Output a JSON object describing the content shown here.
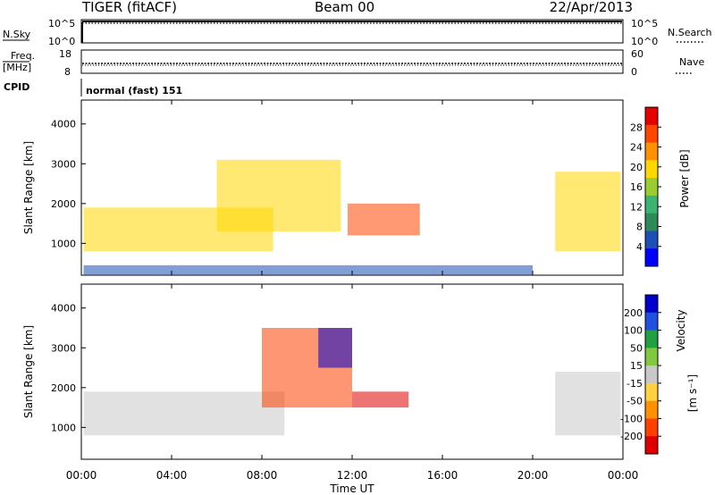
{
  "header": {
    "radar": "TIGER (fitACF)",
    "beam": "Beam 00",
    "date": "22/Apr/2013"
  },
  "chart_data": [
    {
      "type": "line",
      "title": "",
      "left_label": "N.Sky",
      "right_label": "N.Search",
      "left_ticks": [
        "10^5",
        "10^0"
      ],
      "right_ticks": [
        "10^5",
        "10^0"
      ],
      "xlim": [
        "00:00",
        "24:00"
      ],
      "series": [
        {
          "values": [
            5.0,
            5.0
          ]
        },
        {
          "values": [
            4.8,
            4.8
          ]
        }
      ]
    },
    {
      "type": "line",
      "left_label_top": "Freq.",
      "left_label_bottom": "[MHz]",
      "right_label": "Nave",
      "left_ticks": [
        "18",
        "8"
      ],
      "right_ticks": [
        "60",
        "0"
      ],
      "cpid_label": "CPID",
      "cpid_text": "normal (fast) 151",
      "series": [
        {
          "values": [
            10.5,
            10.5
          ]
        }
      ]
    },
    {
      "type": "heatmap",
      "ylabel": "Slant Range [km]",
      "xlim": [
        0,
        24
      ],
      "ylim": [
        200,
        4600
      ],
      "y_ticks": [
        "1000",
        "2000",
        "3000",
        "4000"
      ],
      "colorbar_label": "Power [dB]",
      "colorbar_ticks": [
        "28",
        "24",
        "20",
        "16",
        "12",
        "8",
        "4"
      ],
      "colorbar_colors": [
        "#e60000",
        "#ff4500",
        "#ff9000",
        "#ffd700",
        "#9acd32",
        "#3cb371",
        "#2e8b57",
        "#1e4fb4",
        "#0000ff"
      ],
      "regions": [
        {
          "t0": 0.1,
          "t1": 8.5,
          "r0": 800,
          "r1": 1900,
          "value": 20
        },
        {
          "t0": 6.0,
          "t1": 11.5,
          "r0": 1300,
          "r1": 3100,
          "value": 18
        },
        {
          "t0": 11.8,
          "t1": 15.0,
          "r0": 1200,
          "r1": 2000,
          "value": 24
        },
        {
          "t0": 21.0,
          "t1": 23.9,
          "r0": 800,
          "r1": 2800,
          "value": 18
        },
        {
          "t0": 0.1,
          "t1": 20.0,
          "r0": 200,
          "r1": 450,
          "value": 6
        }
      ]
    },
    {
      "type": "heatmap",
      "ylabel": "Slant Range [km]",
      "xlabel": "Time UT",
      "x_ticks": [
        "00:00",
        "04:00",
        "08:00",
        "12:00",
        "16:00",
        "20:00",
        "00:00"
      ],
      "xlim": [
        0,
        24
      ],
      "ylim": [
        200,
        4600
      ],
      "y_ticks": [
        "1000",
        "2000",
        "3000",
        "4000"
      ],
      "colorbar_label": "Velocity",
      "colorbar_unit": "[m s⁻¹]",
      "colorbar_ticks": [
        "200",
        "100",
        "50",
        "15",
        "-15",
        "-50",
        "-100",
        "-200"
      ],
      "colorbar_colors": [
        "#0000cc",
        "#2050e0",
        "#20a040",
        "#80c840",
        "#c8c8c8",
        "#ffd040",
        "#ff9000",
        "#ff4000",
        "#e00000"
      ],
      "regions": [
        {
          "t0": 0.1,
          "t1": 9.0,
          "r0": 800,
          "r1": 1900,
          "value": 0
        },
        {
          "t0": 8.0,
          "t1": 12.0,
          "r0": 1500,
          "r1": 3500,
          "value": -150
        },
        {
          "t0": 10.5,
          "t1": 12.0,
          "r0": 2500,
          "r1": 3500,
          "value": 180
        },
        {
          "t0": 12.0,
          "t1": 14.5,
          "r0": 1500,
          "r1": 1900,
          "value": -200
        },
        {
          "t0": 21.0,
          "t1": 23.9,
          "r0": 800,
          "r1": 2400,
          "value": 0
        }
      ]
    }
  ]
}
